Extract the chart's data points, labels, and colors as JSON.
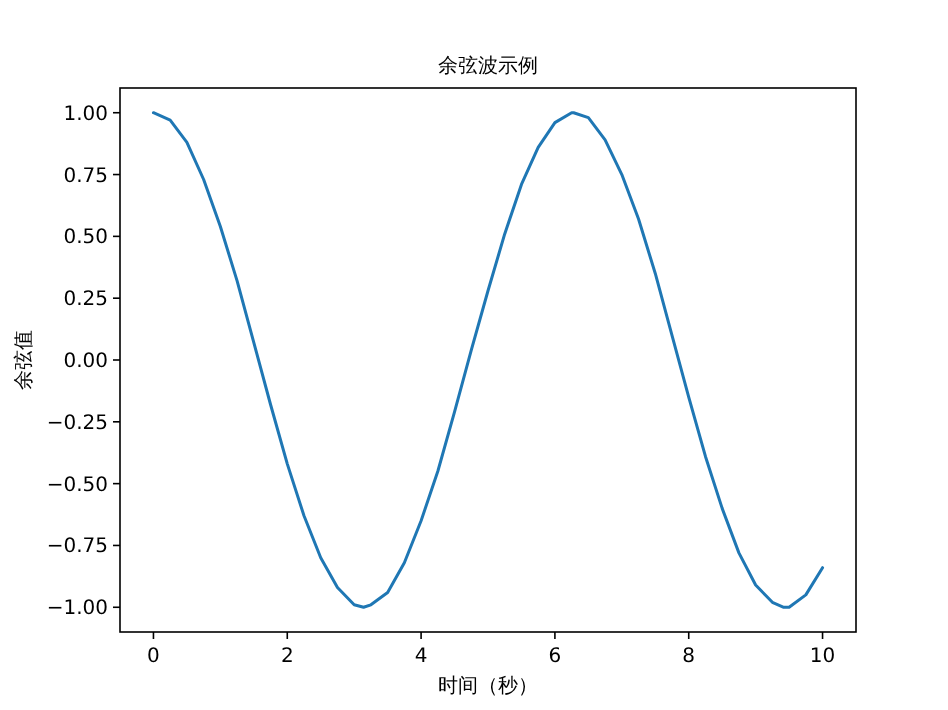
{
  "chart_data": {
    "type": "line",
    "title": "余弦波示例",
    "xlabel": "时间（秒）",
    "ylabel": "余弦值",
    "x": [
      0,
      0.25,
      0.5,
      0.75,
      1,
      1.25,
      1.5,
      1.75,
      2,
      2.25,
      2.5,
      2.75,
      3,
      3.14,
      3.25,
      3.5,
      3.75,
      4,
      4.25,
      4.5,
      4.75,
      5,
      5.25,
      5.5,
      5.75,
      6,
      6.25,
      6.28,
      6.5,
      6.75,
      7,
      7.25,
      7.5,
      7.75,
      8,
      8.25,
      8.5,
      8.75,
      9,
      9.25,
      9.42,
      9.5,
      9.75,
      10
    ],
    "series": [
      {
        "color": "#1f77b4",
        "values": [
          1.0,
          0.97,
          0.88,
          0.73,
          0.54,
          0.32,
          0.07,
          -0.18,
          -0.42,
          -0.63,
          -0.8,
          -0.92,
          -0.99,
          -1.0,
          -0.99,
          -0.94,
          -0.82,
          -0.65,
          -0.45,
          -0.21,
          0.04,
          0.28,
          0.51,
          0.71,
          0.86,
          0.96,
          1.0,
          1.0,
          0.98,
          0.89,
          0.75,
          0.57,
          0.35,
          0.1,
          -0.15,
          -0.39,
          -0.6,
          -0.78,
          -0.91,
          -0.98,
          -1.0,
          -1.0,
          -0.95,
          -0.84
        ]
      }
    ],
    "xlim": [
      -0.5,
      10.5
    ],
    "ylim": [
      -1.1,
      1.1
    ],
    "xticks": [
      0,
      2,
      4,
      6,
      8,
      10
    ],
    "yticks": [
      {
        "value": -1,
        "label": "−1.00"
      },
      {
        "value": -0.75,
        "label": "−0.75"
      },
      {
        "value": -0.5,
        "label": "−0.50"
      },
      {
        "value": -0.25,
        "label": "−0.25"
      },
      {
        "value": 0,
        "label": "0.00"
      },
      {
        "value": 0.25,
        "label": "0.25"
      },
      {
        "value": 0.5,
        "label": "0.50"
      },
      {
        "value": 0.75,
        "label": "0.75"
      },
      {
        "value": 1,
        "label": "1.00"
      }
    ],
    "grid": false
  }
}
